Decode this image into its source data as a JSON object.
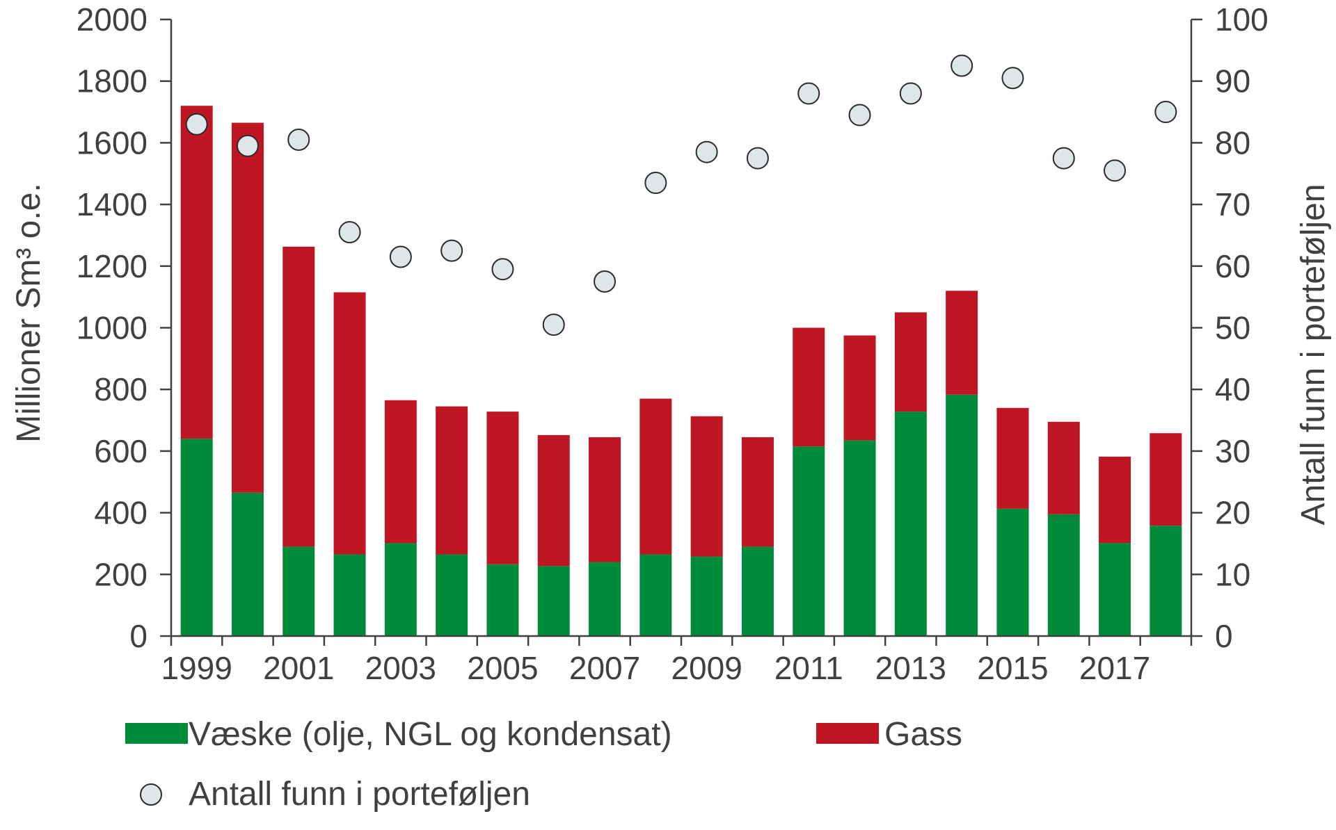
{
  "chart_data": {
    "type": "bar",
    "stacked": true,
    "categories": [
      "1999",
      "2000",
      "2001",
      "2002",
      "2003",
      "2004",
      "2005",
      "2006",
      "2007",
      "2008",
      "2009",
      "2010",
      "2011",
      "2012",
      "2013",
      "2014",
      "2015",
      "2016",
      "2017",
      "2018"
    ],
    "x_tick_labels": [
      "1999",
      "2001",
      "2003",
      "2005",
      "2007",
      "2009",
      "2011",
      "2013",
      "2015",
      "2017"
    ],
    "series": [
      {
        "name": "Væske (olje, NGL og kondensat)",
        "color": "#008a3a",
        "axis": "left",
        "values": [
          640,
          465,
          290,
          265,
          302,
          265,
          233,
          227,
          240,
          265,
          258,
          290,
          615,
          635,
          728,
          783,
          413,
          395,
          302,
          358
        ]
      },
      {
        "name": "Gass",
        "color": "#be1622",
        "axis": "left",
        "values": [
          1080,
          1200,
          973,
          850,
          463,
          480,
          495,
          425,
          405,
          505,
          455,
          355,
          385,
          340,
          322,
          337,
          327,
          300,
          280,
          300
        ]
      }
    ],
    "points": {
      "name": "Antall funn i porteføljen",
      "type": "scatter",
      "axis": "right",
      "fill": "#dfe6ea",
      "stroke": "#2b2b2b",
      "values": [
        83,
        79.5,
        80.5,
        65.5,
        61.5,
        62.5,
        59.5,
        50.5,
        57.5,
        73.5,
        78.5,
        77.5,
        88,
        84.5,
        88,
        92.5,
        90.5,
        77.5,
        75.5,
        85
      ]
    },
    "ylabel": "Millioner Sm³ o.e.",
    "ylabel_right": "Antall funn i porteføljen",
    "xlabel": "",
    "title": "",
    "ylim": [
      0,
      2000
    ],
    "ylim_right": [
      0,
      100
    ],
    "yticks": [
      0,
      200,
      400,
      600,
      800,
      1000,
      1200,
      1400,
      1600,
      1800,
      2000
    ],
    "yticks_right": [
      0,
      10,
      20,
      30,
      40,
      50,
      60,
      70,
      80,
      90,
      100
    ],
    "grid": false,
    "legend_position": "bottom"
  }
}
